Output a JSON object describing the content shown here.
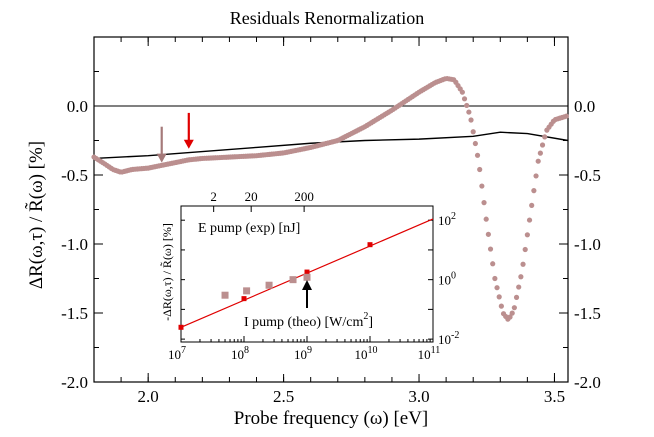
{
  "chart_data": [
    {
      "type": "scatter",
      "title": "Residuals Renormalization",
      "xlabel": "Probe frequency (ω) [eV]",
      "ylabel": "ΔR(ω,τ) / R̃(ω) [%]",
      "xlim": [
        1.8,
        3.55
      ],
      "ylim": [
        -2.0,
        0.5
      ],
      "x_ticks": [
        2.0,
        2.5,
        3.0,
        3.5
      ],
      "x_tick_labels": [
        "2.0",
        "2.5",
        "3.0",
        "3.5"
      ],
      "y_ticks": [
        0.0,
        -0.5,
        -1.0,
        -1.5,
        -2.0
      ],
      "y_tick_labels": [
        "0.0",
        "-0.5",
        "-1.0",
        "-1.5",
        "-2.0"
      ],
      "grid": false,
      "reference_line_y": 0.0,
      "series": [
        {
          "kind": "dots",
          "color": "#bb8f8f",
          "points": [
            [
              1.8,
              -0.37
            ],
            [
              1.84,
              -0.42
            ],
            [
              1.87,
              -0.46
            ],
            [
              1.9,
              -0.48
            ],
            [
              1.94,
              -0.46
            ],
            [
              2.0,
              -0.45
            ],
            [
              2.05,
              -0.43
            ],
            [
              2.1,
              -0.41
            ],
            [
              2.15,
              -0.39
            ],
            [
              2.2,
              -0.38
            ],
            [
              2.3,
              -0.37
            ],
            [
              2.4,
              -0.36
            ],
            [
              2.5,
              -0.34
            ],
            [
              2.6,
              -0.3
            ],
            [
              2.7,
              -0.25
            ],
            [
              2.8,
              -0.15
            ],
            [
              2.9,
              -0.03
            ],
            [
              3.0,
              0.1
            ],
            [
              3.06,
              0.17
            ],
            [
              3.1,
              0.2
            ],
            [
              3.13,
              0.19
            ],
            [
              3.16,
              0.1
            ],
            [
              3.19,
              -0.08
            ],
            [
              3.22,
              -0.4
            ],
            [
              3.25,
              -0.85
            ],
            [
              3.28,
              -1.25
            ],
            [
              3.31,
              -1.5
            ],
            [
              3.33,
              -1.55
            ],
            [
              3.35,
              -1.48
            ],
            [
              3.38,
              -1.2
            ],
            [
              3.41,
              -0.8
            ],
            [
              3.44,
              -0.4
            ],
            [
              3.47,
              -0.18
            ],
            [
              3.5,
              -0.1
            ],
            [
              3.55,
              -0.07
            ]
          ]
        },
        {
          "kind": "line",
          "color": "#000000",
          "points": [
            [
              1.8,
              -0.38
            ],
            [
              2.0,
              -0.36
            ],
            [
              2.2,
              -0.33
            ],
            [
              2.4,
              -0.3
            ],
            [
              2.6,
              -0.27
            ],
            [
              2.8,
              -0.25
            ],
            [
              3.0,
              -0.24
            ],
            [
              3.2,
              -0.22
            ],
            [
              3.3,
              -0.19
            ],
            [
              3.4,
              -0.2
            ],
            [
              3.55,
              -0.25
            ]
          ]
        }
      ],
      "arrows": [
        {
          "x": 2.05,
          "y_from": -0.15,
          "y_to": -0.41,
          "color": "#a57a7a"
        },
        {
          "x": 2.15,
          "y_from": -0.05,
          "y_to": -0.31,
          "color": "#e00000"
        }
      ]
    },
    {
      "type": "scatter",
      "ylabel": "-ΔR(ω,τ) / R̃(ω) [%]",
      "x_scale": "log",
      "y_scale": "log",
      "xlim": [
        10000000.0,
        100000000000.0
      ],
      "ylim": [
        0.008,
        300
      ],
      "x_tick_labels": [
        "10^7",
        "10^8",
        "10^9",
        "10^10",
        "10^11"
      ],
      "y_tick_labels": [
        "10^-2",
        "10^0",
        "10^2"
      ],
      "top_axis_tick_labels": [
        "2",
        "20",
        "200"
      ],
      "annotations": [
        "E pump (exp) [nJ]",
        "I pump (theo) [W/cm^2]"
      ],
      "series": [
        {
          "kind": "squares",
          "color": "#bb8f8f",
          "points": [
            [
              50000000.0,
              0.3
            ],
            [
              110000000.0,
              0.42
            ],
            [
              250000000.0,
              0.65
            ],
            [
              600000000.0,
              1.0
            ],
            [
              1000000000.0,
              1.2
            ]
          ]
        },
        {
          "kind": "line_with_markers",
          "color": "#e00000",
          "points": [
            [
              10000000.0,
              0.025
            ],
            [
              100000000.0,
              0.23
            ],
            [
              1000000000.0,
              1.8
            ],
            [
              10000000000.0,
              15.0
            ]
          ],
          "fit": [
            [
              10000000.0,
              0.025
            ],
            [
              100000000000.0,
              110
            ]
          ]
        }
      ],
      "arrow": {
        "x": 1000000000.0,
        "color": "#000000"
      }
    }
  ]
}
